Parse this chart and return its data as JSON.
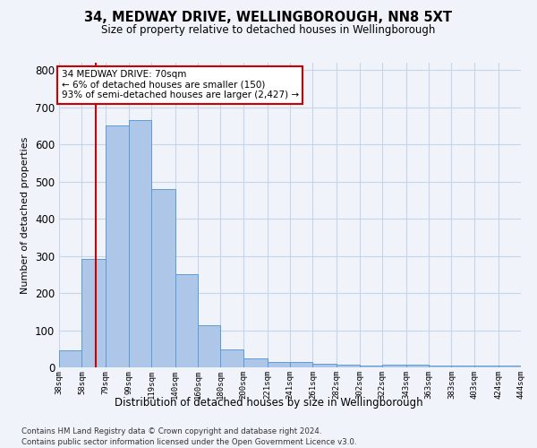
{
  "title1": "34, MEDWAY DRIVE, WELLINGBOROUGH, NN8 5XT",
  "title2": "Size of property relative to detached houses in Wellingborough",
  "xlabel": "Distribution of detached houses by size in Wellingborough",
  "ylabel": "Number of detached properties",
  "footnote1": "Contains HM Land Registry data © Crown copyright and database right 2024.",
  "footnote2": "Contains public sector information licensed under the Open Government Licence v3.0.",
  "annotation_line1": "34 MEDWAY DRIVE: 70sqm",
  "annotation_line2": "← 6% of detached houses are smaller (150)",
  "annotation_line3": "93% of semi-detached houses are larger (2,427) →",
  "bar_left_edges": [
    38,
    58,
    79,
    99,
    119,
    140,
    160,
    180,
    200,
    221,
    241,
    261,
    282,
    302,
    322,
    343,
    363,
    383,
    403,
    424
  ],
  "bar_widths": [
    20,
    21,
    20,
    20,
    21,
    20,
    20,
    20,
    21,
    20,
    20,
    21,
    20,
    20,
    21,
    20,
    20,
    20,
    21,
    20
  ],
  "bar_heights": [
    45,
    293,
    650,
    665,
    480,
    250,
    113,
    48,
    25,
    15,
    15,
    10,
    8,
    5,
    8,
    7,
    5,
    5,
    5,
    5
  ],
  "tick_labels": [
    "38sqm",
    "58sqm",
    "79sqm",
    "99sqm",
    "119sqm",
    "140sqm",
    "160sqm",
    "180sqm",
    "200sqm",
    "221sqm",
    "241sqm",
    "261sqm",
    "282sqm",
    "302sqm",
    "322sqm",
    "343sqm",
    "363sqm",
    "383sqm",
    "403sqm",
    "424sqm",
    "444sqm"
  ],
  "bar_color": "#aec6e8",
  "bar_edge_color": "#5b9bd5",
  "vline_x": 70,
  "vline_color": "#cc0000",
  "annotation_box_color": "#cc0000",
  "grid_color": "#c8d4e8",
  "bg_color": "#f0f4fa",
  "ylim": [
    0,
    820
  ],
  "yticks": [
    0,
    100,
    200,
    300,
    400,
    500,
    600,
    700,
    800
  ]
}
